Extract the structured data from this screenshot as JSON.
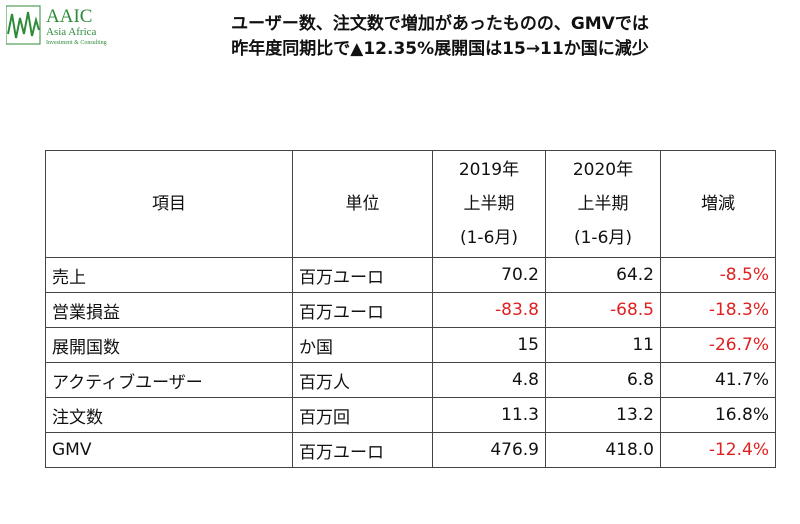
{
  "logo": {
    "mark": "AAIC",
    "name": "Asia Africa",
    "tagline": "Investment & Consulting"
  },
  "title": {
    "lines": [
      "ユーザー数、注文数で増加があったものの、GMVでは",
      "昨年度同期比で▲12.35%展開国は15→11か国に減少"
    ]
  },
  "table": {
    "header": [
      [
        "項目"
      ],
      [
        "単位"
      ],
      [
        "2019年",
        "上半期",
        "(1-6月)"
      ],
      [
        "2020年",
        "上半期",
        "(1-6月)"
      ],
      [
        "増減"
      ]
    ],
    "rows": [
      [
        "売上",
        "百万ユーロ",
        "70.2",
        "64.2",
        "-8.5%"
      ],
      [
        "営業損益",
        "百万ユーロ",
        "-83.8",
        "-68.5",
        "-18.3%"
      ],
      [
        "展開国数",
        "か国",
        "15",
        "11",
        "-26.7%"
      ],
      [
        "アクティブユーザー",
        "百万人",
        "4.8",
        "6.8",
        "41.7%"
      ],
      [
        "注文数",
        "百万回",
        "11.3",
        "13.2",
        "16.8%"
      ],
      [
        "GMV",
        "百万ユーロ",
        "476.9",
        "418.0",
        "-12.4%"
      ]
    ]
  }
}
